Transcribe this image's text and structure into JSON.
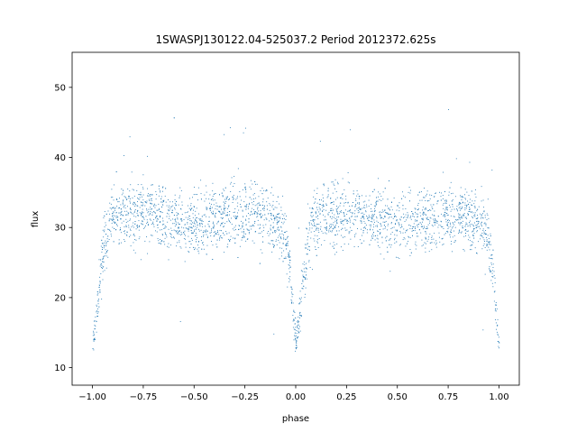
{
  "chart_data": {
    "type": "scatter",
    "title": "1SWASPJ130122.04-525037.2 Period 2012372.625s",
    "xlabel": "phase",
    "ylabel": "flux",
    "xlim": [
      -1.1,
      1.1
    ],
    "ylim": [
      7.5,
      55
    ],
    "grid": false,
    "x_ticks": [
      -1.0,
      -0.75,
      -0.5,
      -0.25,
      0.0,
      0.25,
      0.5,
      0.75,
      1.0
    ],
    "x_tick_labels": [
      "−1.00",
      "−0.75",
      "−0.50",
      "−0.25",
      "0.00",
      "0.25",
      "0.50",
      "0.75",
      "1.00"
    ],
    "y_ticks": [
      10,
      20,
      30,
      40,
      50
    ],
    "y_tick_labels": [
      "10",
      "20",
      "30",
      "40",
      "50"
    ],
    "marker_color": "#1f77b4",
    "light_curve_profile": {
      "phase": [
        0.0,
        0.02,
        0.04,
        0.06,
        0.08,
        0.1,
        0.15,
        0.2,
        0.3,
        0.4,
        0.5,
        0.6,
        0.7,
        0.8,
        0.9,
        0.93,
        0.95,
        0.97,
        0.985,
        1.0
      ],
      "flux_median": [
        13.5,
        18,
        24,
        28,
        30.5,
        31.5,
        32,
        32,
        32,
        31,
        30.5,
        31,
        32,
        32,
        31,
        30,
        28,
        24,
        18,
        13.5
      ],
      "flux_spread": [
        1.5,
        2.5,
        3.5,
        4,
        4,
        4,
        4,
        4,
        4,
        4,
        4,
        4,
        4,
        4,
        4,
        4,
        3.5,
        3,
        2.5,
        1.5
      ]
    }
  }
}
